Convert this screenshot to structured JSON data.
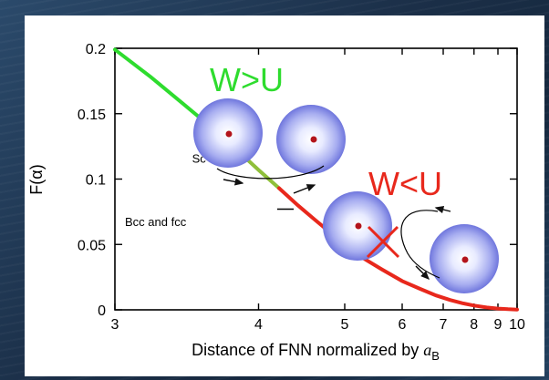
{
  "chart_data": {
    "type": "line",
    "xlabel": "Distance of FNN normalized by ",
    "xlabel_symbol": "a",
    "xlabel_subscript": "B",
    "ylabel": "F(α)",
    "xlim": [
      3,
      10
    ],
    "ylim": [
      0,
      0.2
    ],
    "x_ticks": [
      "3",
      "4",
      "5",
      "6",
      "7",
      "8",
      "9",
      "10"
    ],
    "y_ticks": [
      "0",
      "0.05",
      "0.1",
      "0.15",
      "0.2"
    ],
    "x_tick_values": [
      3,
      4,
      5,
      6,
      7,
      8,
      9,
      10
    ],
    "y_tick_values": [
      0,
      0.05,
      0.1,
      0.15,
      0.2
    ],
    "series": [
      {
        "color_green": "#2edc2e",
        "color_olive": "#8fbf3a",
        "color_red": "#e8281c",
        "x": [
          3.0,
          3.2,
          3.4,
          3.6,
          3.8,
          4.0,
          4.2,
          4.4,
          4.6,
          4.8,
          5.0,
          5.3,
          5.6,
          6.0,
          6.4,
          6.8,
          7.2,
          7.6,
          8.0,
          8.5,
          9.0,
          9.5,
          10.0
        ],
        "y": [
          0.199,
          0.178,
          0.158,
          0.14,
          0.123,
          0.107,
          0.093,
          0.08,
          0.069,
          0.059,
          0.05,
          0.039,
          0.031,
          0.022,
          0.016,
          0.011,
          0.0075,
          0.005,
          0.0033,
          0.0018,
          0.001,
          0.0005,
          0.0002
        ],
        "green_until_x": 3.8,
        "olive_until_x": 4.2
      }
    ],
    "annotations": {
      "sc_label": "Sc",
      "sc_x": 3.8,
      "sc_y": 0.114,
      "bcc_label": "Bcc and fcc",
      "bcc_x": 4.2,
      "bcc_y": 0.077,
      "w_gt_u": "W>U",
      "w_lt_u": "W<U",
      "w_gt_u_color": "#2edc2e",
      "w_lt_u_color": "#e8281c"
    }
  }
}
